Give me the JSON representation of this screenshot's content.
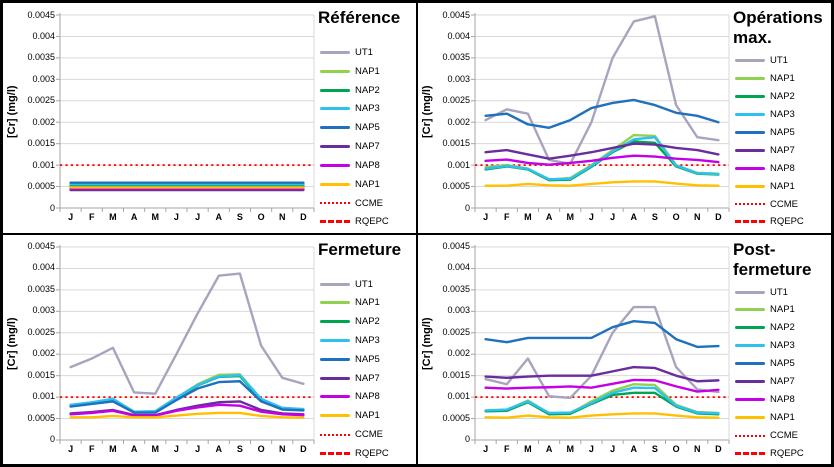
{
  "figure": {
    "ylabel": "[Cr] (mg/l)",
    "months": [
      "J",
      "F",
      "M",
      "A",
      "M",
      "J",
      "J",
      "A",
      "S",
      "O",
      "N",
      "D"
    ],
    "y_axis": {
      "min": 0,
      "max": 0.0045,
      "ticks": [
        {
          "label": "0.0045",
          "value": 0.0045
        },
        {
          "label": "0.004",
          "value": 0.004
        },
        {
          "label": "0.0035",
          "value": 0.0035
        },
        {
          "label": "0.003",
          "value": 0.003
        },
        {
          "label": "0.0025",
          "value": 0.0025
        },
        {
          "label": "0.002",
          "value": 0.002
        },
        {
          "label": "0.0015",
          "value": 0.0015
        },
        {
          "label": "0.001",
          "value": 0.001
        },
        {
          "label": "0.0005",
          "value": 0.0005
        },
        {
          "label": "0",
          "value": 0
        }
      ]
    },
    "colors": {
      "UT1": "#A9A4BD",
      "NAP1_green": "#92D050",
      "NAP2": "#00A550",
      "NAP3": "#2EC0F0",
      "NAP5": "#1F70BE",
      "NAP7": "#6A2D9C",
      "NAP8": "#C400E6",
      "NAP1_orange": "#FFC000",
      "guideline_red": "#FF0000",
      "grid": "#D9D9D9",
      "axis": "#A6A6A6"
    },
    "legend": [
      {
        "label": "UT1",
        "color": "#A9A4BD",
        "style": "solid"
      },
      {
        "label": "NAP1",
        "color": "#92D050",
        "style": "solid"
      },
      {
        "label": "NAP2",
        "color": "#00A550",
        "style": "solid"
      },
      {
        "label": "NAP3",
        "color": "#2EC0F0",
        "style": "solid"
      },
      {
        "label": "NAP5",
        "color": "#1F70BE",
        "style": "solid"
      },
      {
        "label": "NAP7",
        "color": "#6A2D9C",
        "style": "solid"
      },
      {
        "label": "NAP8",
        "color": "#C400E6",
        "style": "solid"
      },
      {
        "label": "NAP1",
        "color": "#FFC000",
        "style": "solid"
      },
      {
        "label": "CCME",
        "color": "#FF0000",
        "style": "dotted"
      },
      {
        "label": "RQEPC",
        "color": "#FF0000",
        "style": "dashed"
      }
    ]
  },
  "chart_data": [
    {
      "type": "line",
      "title": "Référence",
      "title_lines": [
        "Référence"
      ],
      "xlabel": "",
      "ylabel": "[Cr] (mg/l)",
      "ylim": [
        0,
        0.0045
      ],
      "grid": true,
      "legend_position": "right",
      "x": [
        "J",
        "F",
        "M",
        "A",
        "M",
        "J",
        "J",
        "A",
        "S",
        "O",
        "N",
        "D"
      ],
      "reference_lines": [
        {
          "name": "CCME",
          "value": 0.001,
          "style": "dotted"
        },
        {
          "name": "RQEPC",
          "value": null,
          "style": "dashed"
        }
      ],
      "series": [
        {
          "name": "UT1",
          "color": "#A9A4BD",
          "values": [
            0.00057,
            0.00057,
            0.00057,
            0.00057,
            0.00057,
            0.00057,
            0.00057,
            0.00057,
            0.00057,
            0.00057,
            0.00057,
            0.00057
          ]
        },
        {
          "name": "NAP1",
          "color": "#92D050",
          "values": [
            0.000495,
            0.000495,
            0.000495,
            0.000495,
            0.000495,
            0.000495,
            0.000495,
            0.000495,
            0.000495,
            0.000495,
            0.000495,
            0.000495
          ]
        },
        {
          "name": "NAP2",
          "color": "#00A550",
          "values": [
            0.00052,
            0.00052,
            0.00052,
            0.00052,
            0.00052,
            0.00052,
            0.00052,
            0.00052,
            0.00052,
            0.00052,
            0.00052,
            0.00052
          ]
        },
        {
          "name": "NAP3",
          "color": "#2EC0F0",
          "values": [
            0.000555,
            0.000555,
            0.000555,
            0.000555,
            0.000555,
            0.000555,
            0.000555,
            0.000555,
            0.000555,
            0.000555,
            0.000555,
            0.000555
          ]
        },
        {
          "name": "NAP5",
          "color": "#1F70BE",
          "values": [
            0.00059,
            0.00059,
            0.00059,
            0.00059,
            0.00059,
            0.00059,
            0.00059,
            0.00059,
            0.00059,
            0.00059,
            0.00059,
            0.00059
          ]
        },
        {
          "name": "NAP7",
          "color": "#6A2D9C",
          "values": [
            0.00042,
            0.00042,
            0.00042,
            0.00042,
            0.00042,
            0.00042,
            0.00042,
            0.00042,
            0.00042,
            0.00042,
            0.00042,
            0.00042
          ]
        },
        {
          "name": "NAP8",
          "color": "#C400E6",
          "values": [
            0.000455,
            0.000455,
            0.000455,
            0.000455,
            0.000455,
            0.000455,
            0.000455,
            0.000455,
            0.000455,
            0.000455,
            0.000455,
            0.000455
          ]
        },
        {
          "name": "NAP1",
          "color": "#FFC000",
          "values": [
            0.00048,
            0.00048,
            0.00048,
            0.00048,
            0.00048,
            0.00048,
            0.00048,
            0.00048,
            0.00048,
            0.00048,
            0.00048,
            0.00048
          ]
        }
      ]
    },
    {
      "type": "line",
      "title": "Opérations max.",
      "title_lines": [
        "Opérations",
        "max."
      ],
      "xlabel": "",
      "ylabel": "[Cr] (mg/l)",
      "ylim": [
        0,
        0.0045
      ],
      "grid": true,
      "legend_position": "right",
      "x": [
        "J",
        "F",
        "M",
        "A",
        "M",
        "J",
        "J",
        "A",
        "S",
        "O",
        "N",
        "D"
      ],
      "reference_lines": [
        {
          "name": "CCME",
          "value": 0.001,
          "style": "dotted"
        },
        {
          "name": "RQEPC",
          "value": null,
          "style": "dashed"
        }
      ],
      "series": [
        {
          "name": "UT1",
          "color": "#A9A4BD",
          "values": [
            0.00205,
            0.0023,
            0.0022,
            0.00112,
            0.00103,
            0.002,
            0.0035,
            0.00435,
            0.00447,
            0.0024,
            0.00165,
            0.00158
          ]
        },
        {
          "name": "NAP1",
          "color": "#92D050",
          "values": [
            0.00095,
            0.001,
            0.00092,
            0.00066,
            0.0007,
            0.001,
            0.00135,
            0.0017,
            0.00168,
            0.001,
            0.00082,
            0.0008
          ]
        },
        {
          "name": "NAP2",
          "color": "#00A550",
          "values": [
            0.0009,
            0.00097,
            0.0009,
            0.00065,
            0.00066,
            0.00096,
            0.0013,
            0.00155,
            0.00152,
            0.00097,
            0.0008,
            0.00078
          ]
        },
        {
          "name": "NAP3",
          "color": "#2EC0F0",
          "values": [
            0.00092,
            0.00098,
            0.00091,
            0.00067,
            0.00068,
            0.00098,
            0.00132,
            0.0016,
            0.00165,
            0.00099,
            0.00081,
            0.00079
          ]
        },
        {
          "name": "NAP5",
          "color": "#1F70BE",
          "values": [
            0.00215,
            0.0022,
            0.00195,
            0.00187,
            0.00205,
            0.00233,
            0.00245,
            0.00252,
            0.0024,
            0.00222,
            0.00215,
            0.002
          ]
        },
        {
          "name": "NAP7",
          "color": "#6A2D9C",
          "values": [
            0.0013,
            0.00135,
            0.00125,
            0.00115,
            0.00122,
            0.0013,
            0.0014,
            0.0015,
            0.00148,
            0.0014,
            0.00135,
            0.00125
          ]
        },
        {
          "name": "NAP8",
          "color": "#C400E6",
          "values": [
            0.0011,
            0.00113,
            0.00105,
            0.00101,
            0.00105,
            0.0011,
            0.00117,
            0.00122,
            0.0012,
            0.00115,
            0.00112,
            0.00107
          ]
        },
        {
          "name": "NAP1",
          "color": "#FFC000",
          "values": [
            0.00052,
            0.00052,
            0.00056,
            0.00053,
            0.00052,
            0.00056,
            0.0006,
            0.00062,
            0.00062,
            0.00057,
            0.00053,
            0.00052
          ]
        }
      ]
    },
    {
      "type": "line",
      "title": "Fermeture",
      "title_lines": [
        "Fermeture"
      ],
      "xlabel": "",
      "ylabel": "[Cr] (mg/l)",
      "ylim": [
        0,
        0.0045
      ],
      "grid": true,
      "legend_position": "right",
      "x": [
        "J",
        "F",
        "M",
        "A",
        "M",
        "J",
        "J",
        "A",
        "S",
        "O",
        "N",
        "D"
      ],
      "reference_lines": [
        {
          "name": "CCME",
          "value": 0.001,
          "style": "dotted"
        },
        {
          "name": "RQEPC",
          "value": null,
          "style": "dashed"
        }
      ],
      "series": [
        {
          "name": "UT1",
          "color": "#A9A4BD",
          "values": [
            0.0017,
            0.0019,
            0.00215,
            0.00111,
            0.00108,
            0.002,
            0.00295,
            0.00383,
            0.00388,
            0.0022,
            0.00145,
            0.00131
          ]
        },
        {
          "name": "NAP1",
          "color": "#92D050",
          "values": [
            0.00081,
            0.00087,
            0.00094,
            0.00065,
            0.00066,
            0.00098,
            0.0013,
            0.00152,
            0.00153,
            0.00095,
            0.00074,
            0.00071
          ]
        },
        {
          "name": "NAP2",
          "color": "#00A550",
          "values": [
            0.0008,
            0.00086,
            0.00092,
            0.00064,
            0.00065,
            0.00096,
            0.00127,
            0.00147,
            0.00149,
            0.00093,
            0.00073,
            0.0007
          ]
        },
        {
          "name": "NAP3",
          "color": "#2EC0F0",
          "values": [
            0.00082,
            0.00088,
            0.00096,
            0.00066,
            0.00067,
            0.00099,
            0.00128,
            0.00148,
            0.00151,
            0.00096,
            0.00075,
            0.00072
          ]
        },
        {
          "name": "NAP5",
          "color": "#1F70BE",
          "values": [
            0.00078,
            0.00084,
            0.0009,
            0.00064,
            0.00064,
            0.00093,
            0.0012,
            0.00135,
            0.00137,
            0.0009,
            0.00071,
            0.00069
          ]
        },
        {
          "name": "NAP7",
          "color": "#6A2D9C",
          "values": [
            0.00062,
            0.00065,
            0.0007,
            0.00058,
            0.00058,
            0.0007,
            0.0008,
            0.00088,
            0.0009,
            0.0007,
            0.00062,
            0.0006
          ]
        },
        {
          "name": "NAP8",
          "color": "#C400E6",
          "values": [
            0.0006,
            0.00063,
            0.00068,
            0.00057,
            0.00057,
            0.00068,
            0.00076,
            0.00082,
            0.0008,
            0.00066,
            0.0006,
            0.00058
          ]
        },
        {
          "name": "NAP1",
          "color": "#FFC000",
          "values": [
            0.00053,
            0.00053,
            0.00056,
            0.00053,
            0.00053,
            0.00057,
            0.00061,
            0.00063,
            0.00063,
            0.00056,
            0.00053,
            0.00052
          ]
        }
      ]
    },
    {
      "type": "line",
      "title": "Post-fermeture",
      "title_lines": [
        "Post-",
        "fermeture"
      ],
      "xlabel": "",
      "ylabel": "[Cr] (mg/l)",
      "ylim": [
        0,
        0.0045
      ],
      "grid": true,
      "legend_position": "right",
      "x": [
        "J",
        "F",
        "M",
        "A",
        "M",
        "J",
        "J",
        "A",
        "S",
        "O",
        "N",
        "D"
      ],
      "reference_lines": [
        {
          "name": "CCME",
          "value": 0.001,
          "style": "dotted"
        },
        {
          "name": "RQEPC",
          "value": null,
          "style": "dashed"
        }
      ],
      "series": [
        {
          "name": "UT1",
          "color": "#A9A4BD",
          "values": [
            0.00142,
            0.0013,
            0.0019,
            0.00102,
            0.00098,
            0.0015,
            0.0025,
            0.0031,
            0.0031,
            0.0017,
            0.00118,
            0.00112
          ]
        },
        {
          "name": "NAP1",
          "color": "#92D050",
          "values": [
            0.00068,
            0.0007,
            0.00092,
            0.00062,
            0.00062,
            0.0009,
            0.00115,
            0.0013,
            0.00128,
            0.00082,
            0.00065,
            0.00063
          ]
        },
        {
          "name": "NAP2",
          "color": "#00A550",
          "values": [
            0.00067,
            0.00068,
            0.00088,
            0.0006,
            0.00061,
            0.00084,
            0.00105,
            0.0011,
            0.0011,
            0.00078,
            0.00062,
            0.0006
          ]
        },
        {
          "name": "NAP3",
          "color": "#2EC0F0",
          "values": [
            0.00069,
            0.00071,
            0.0009,
            0.00063,
            0.00064,
            0.00086,
            0.0011,
            0.00122,
            0.00121,
            0.0008,
            0.00064,
            0.00062
          ]
        },
        {
          "name": "NAP5",
          "color": "#1F70BE",
          "values": [
            0.00235,
            0.00228,
            0.00238,
            0.00238,
            0.00238,
            0.00238,
            0.00263,
            0.00277,
            0.00273,
            0.00235,
            0.00217,
            0.00219
          ]
        },
        {
          "name": "NAP7",
          "color": "#6A2D9C",
          "values": [
            0.00148,
            0.00145,
            0.00148,
            0.0015,
            0.0015,
            0.0015,
            0.0016,
            0.0017,
            0.00168,
            0.0015,
            0.00137,
            0.00139
          ]
        },
        {
          "name": "NAP8",
          "color": "#C400E6",
          "values": [
            0.00122,
            0.0012,
            0.00122,
            0.00123,
            0.00125,
            0.00122,
            0.00131,
            0.0014,
            0.00139,
            0.00125,
            0.00113,
            0.00117
          ]
        },
        {
          "name": "NAP1",
          "color": "#FFC000",
          "values": [
            0.00053,
            0.00052,
            0.00057,
            0.00053,
            0.00052,
            0.00057,
            0.0006,
            0.00062,
            0.00062,
            0.00057,
            0.00053,
            0.00052
          ]
        }
      ]
    }
  ]
}
